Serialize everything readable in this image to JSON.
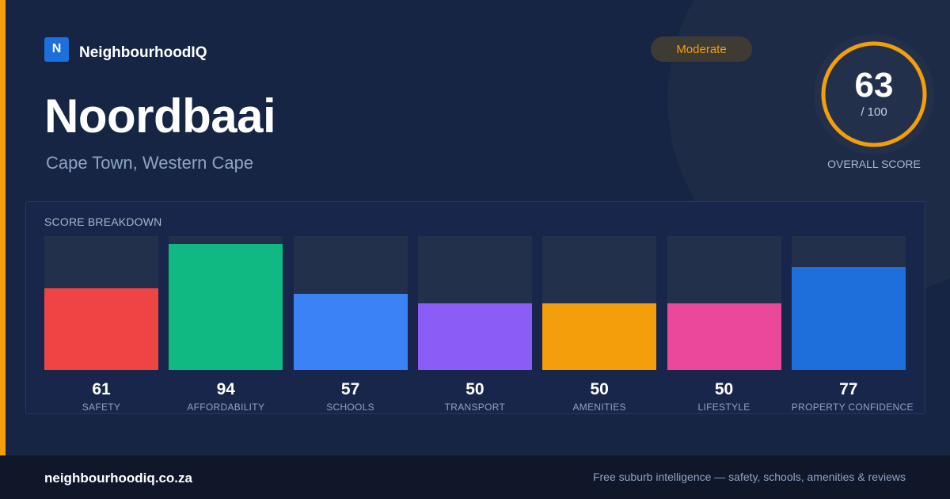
{
  "brand": {
    "logo_letter": "N",
    "name": "NeighbourhoodIQ"
  },
  "suburb": {
    "name": "Noordbaai",
    "location": "Cape Town, Western Cape"
  },
  "rating_badge": {
    "label": "Moderate",
    "color": "#f59e0b"
  },
  "overall": {
    "score": "63",
    "max": "/ 100",
    "caption": "OVERALL SCORE",
    "fraction": 0.63,
    "ring_color": "#f59e0b"
  },
  "breakdown": {
    "title": "SCORE BREAKDOWN",
    "categories": [
      {
        "label": "SAFETY",
        "value": "61",
        "score": 61,
        "color": "#ef4444"
      },
      {
        "label": "AFFORDABILITY",
        "value": "94",
        "score": 94,
        "color": "#10b981"
      },
      {
        "label": "SCHOOLS",
        "value": "57",
        "score": 57,
        "color": "#3b82f6"
      },
      {
        "label": "TRANSPORT",
        "value": "50",
        "score": 50,
        "color": "#8b5cf6"
      },
      {
        "label": "AMENITIES",
        "value": "50",
        "score": 50,
        "color": "#f59e0b"
      },
      {
        "label": "LIFESTYLE",
        "value": "50",
        "score": 50,
        "color": "#ec4899"
      },
      {
        "label": "PROPERTY CONFIDENCE",
        "value": "77",
        "score": 77,
        "color": "#1d6fdc"
      }
    ]
  },
  "footer": {
    "domain": "neighbourhoodiq.co.za",
    "tagline": "Free suburb intelligence — safety, schools, amenities & reviews"
  }
}
